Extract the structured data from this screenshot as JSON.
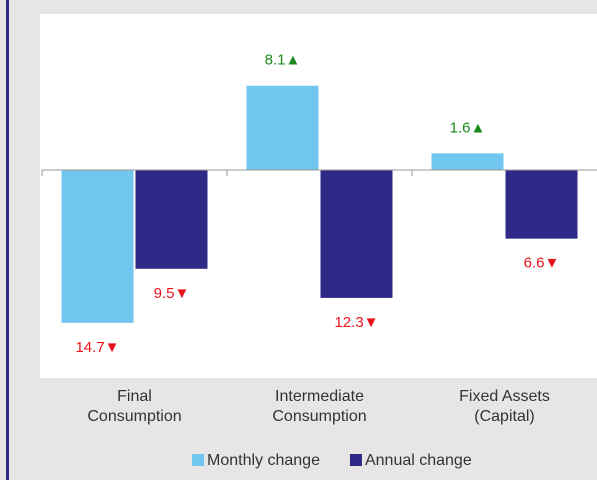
{
  "chart_data": {
    "type": "bar",
    "categories": [
      "Final\nConsumption",
      "Intermediate\nConsumption",
      "Fixed Assets\n(Capital)"
    ],
    "series": [
      {
        "name": "Monthly change",
        "color": "#71c6ef",
        "values": [
          -14.7,
          8.1,
          1.6
        ],
        "value_labels": [
          "14.7▼",
          "8.1▲",
          "1.6▲"
        ]
      },
      {
        "name": "Annual change",
        "color": "#2f2a87",
        "values": [
          -9.5,
          -12.3,
          -6.6
        ],
        "value_labels": [
          "9.5▼",
          "12.3▼",
          "6.6▼"
        ]
      }
    ],
    "up_color": "#1b8a1b",
    "down_color": "#e8141c",
    "ylim": [
      -20,
      15
    ]
  }
}
